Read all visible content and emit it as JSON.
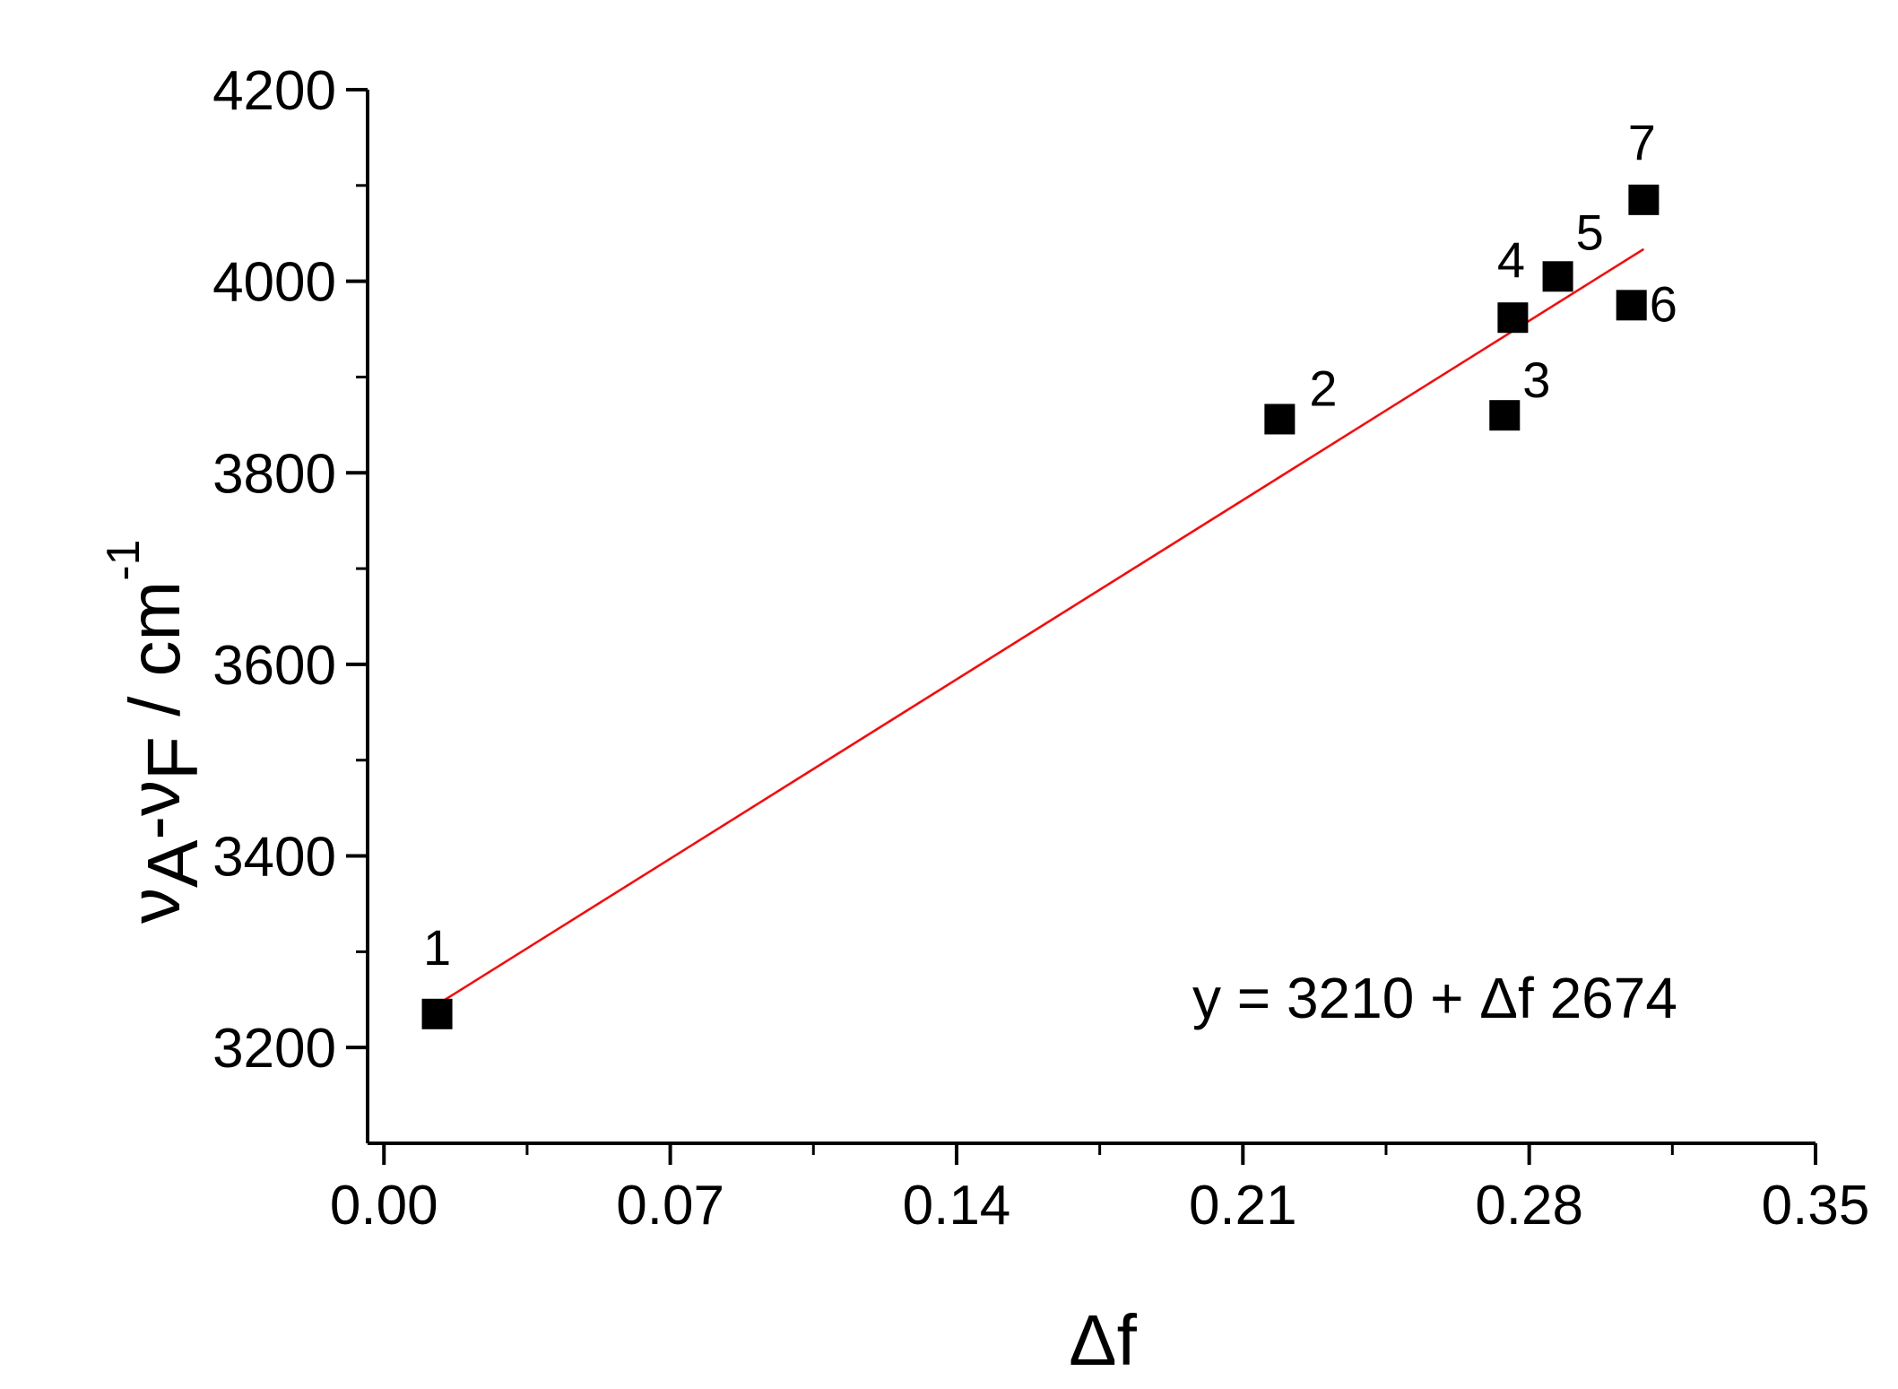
{
  "chart_data": {
    "type": "scatter",
    "title": "",
    "xlabel": "Δf",
    "ylabel": {
      "nu1": "ν",
      "sub1": "A",
      "minus": "-",
      "nu2": "ν",
      "sub2": "F",
      "unit": " / cm",
      "exponent": "-1"
    },
    "xlim": [
      -0.004,
      0.35
    ],
    "ylim": [
      3100,
      4200
    ],
    "x_ticks": [
      0.0,
      0.07,
      0.14,
      0.21,
      0.28,
      0.35
    ],
    "x_tick_labels": [
      "0.00",
      "0.07",
      "0.14",
      "0.21",
      "0.28",
      "0.35"
    ],
    "x_minor_ticks": [
      0.035,
      0.105,
      0.175,
      0.245,
      0.315
    ],
    "y_ticks": [
      3200,
      3400,
      3600,
      3800,
      4000,
      4200
    ],
    "y_tick_labels": [
      "3200",
      "3400",
      "3600",
      "3800",
      "4000",
      "4200"
    ],
    "y_minor_ticks": [
      3300,
      3500,
      3700,
      3900,
      4100
    ],
    "grid": false,
    "points": [
      {
        "label": "1",
        "x": 0.013,
        "y": 3235
      },
      {
        "label": "2",
        "x": 0.219,
        "y": 3856
      },
      {
        "label": "3",
        "x": 0.274,
        "y": 3860
      },
      {
        "label": "4",
        "x": 0.276,
        "y": 3962
      },
      {
        "label": "5",
        "x": 0.287,
        "y": 4005
      },
      {
        "label": "6",
        "x": 0.305,
        "y": 3975
      },
      {
        "label": "7",
        "x": 0.308,
        "y": 4085
      }
    ],
    "fit_line": {
      "intercept": 3210,
      "slope": 2674,
      "x_range": [
        0.013,
        0.308
      ],
      "color": "#ff0000"
    },
    "equation_text": "y = 3210 + Δf 2674",
    "marker_color": "#000000"
  }
}
